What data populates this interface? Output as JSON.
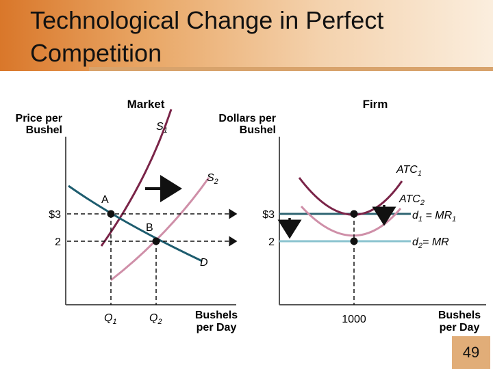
{
  "slide": {
    "title": "Technological Change in Perfect Competition",
    "page_number": "49"
  },
  "market": {
    "heading": "Market",
    "y_axis_label": [
      "Price per",
      "Bushel"
    ],
    "x_axis_label": [
      "Bushels",
      "per Day"
    ],
    "supply_1": "S",
    "supply_1_sub": "1",
    "supply_2": "S",
    "supply_2_sub": "2",
    "demand": "D",
    "point_a": "A",
    "point_b": "B",
    "price_high": "$3",
    "price_low": "2",
    "quantity_1": "Q",
    "quantity_1_sub": "1",
    "quantity_2": "Q",
    "quantity_2_sub": "2"
  },
  "firm": {
    "heading": "Firm",
    "y_axis_label": [
      "Dollars per",
      "Bushel"
    ],
    "x_axis_label": [
      "Bushels",
      "per Day"
    ],
    "atc_1": "ATC",
    "atc_1_sub": "1",
    "atc_2": "ATC",
    "atc_2_sub": "2",
    "d1_a": "d",
    "d1_sub": "1",
    "d1_b": " = MR",
    "d1_sub2": "1",
    "d2_a": "d",
    "d2_sub": "2",
    "d2_b": "= MR",
    "price_high": "$3",
    "price_low": "2",
    "quantity": "1000"
  },
  "colors": {
    "supply_1": "#7a2448",
    "supply_2": "#cf8fa8",
    "demand": "#1d5c6e",
    "d1_line": "#2e6472",
    "d2_line": "#8ac3cf",
    "atc_1": "#7a2448",
    "atc_2": "#cf8fa8"
  }
}
